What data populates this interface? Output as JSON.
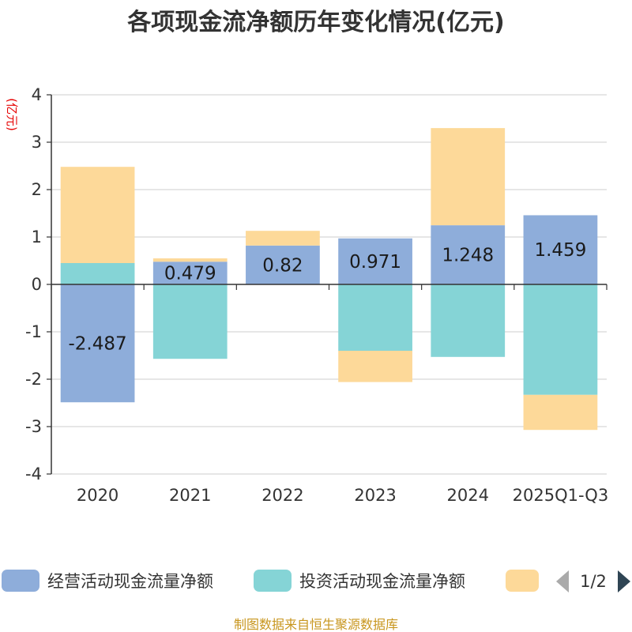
{
  "title": "各项现金流净额历年变化情况(亿元)",
  "unit": "(亿元)",
  "source": "制图数据来自恒生聚源数据库",
  "legend_pager": "1/2",
  "colors": {
    "operating": "#8eadda",
    "investing": "#85d4d6",
    "financing": "#fdd999"
  },
  "chart_data": {
    "type": "bar",
    "stacked": true,
    "categories": [
      "2020",
      "2021",
      "2022",
      "2023",
      "2024",
      "2025Q1-Q3"
    ],
    "ylim": [
      -4,
      4
    ],
    "yticks": [
      4,
      3,
      2,
      1,
      0,
      -1,
      -2,
      -3,
      -4
    ],
    "grid": true,
    "legend_position": "bottom",
    "series": [
      {
        "name": "经营活动现金流量净额",
        "values": [
          -2.487,
          0.479,
          0.82,
          0.971,
          1.248,
          1.459
        ],
        "labeled": true
      },
      {
        "name": "投资活动现金流量净额",
        "values": [
          0.45,
          -1.57,
          0.0,
          -1.4,
          -1.53,
          -2.33
        ],
        "labeled": false
      },
      {
        "name": "",
        "values": [
          2.03,
          0.07,
          0.31,
          -0.66,
          2.05,
          -0.74
        ],
        "labeled": false
      }
    ],
    "data_labels": [
      "-2.487",
      "0.479",
      "0.82",
      "0.971",
      "1.248",
      "1.459"
    ]
  }
}
